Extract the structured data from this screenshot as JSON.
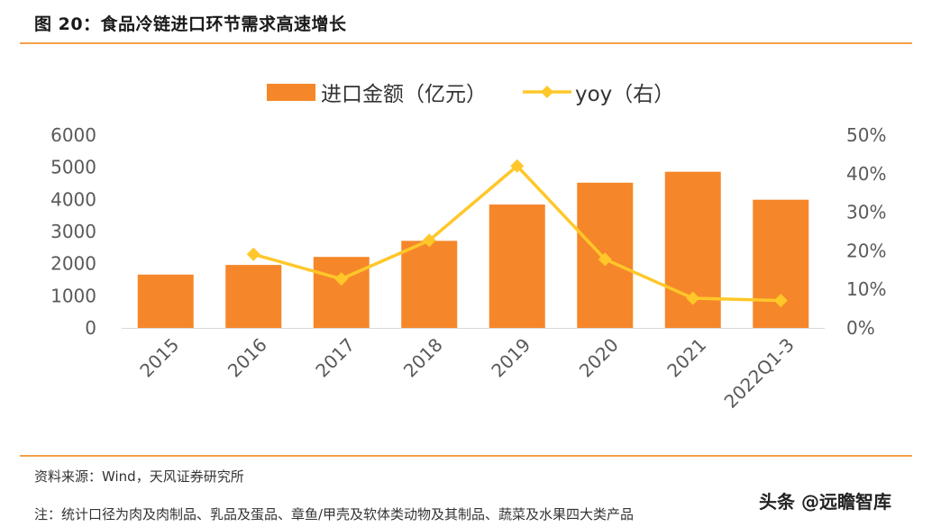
{
  "figure": {
    "title": "图 20：食品冷链进口环节需求高速增长",
    "source": "资料来源：Wind，天风证券研究所",
    "note": "注：统计口径为肉及肉制品、乳品及蛋品、章鱼/甲壳及软体类动物及其制品、蔬菜及水果四大类产品",
    "watermark": "头条 @远瞻智库"
  },
  "colors": {
    "bar": "#F5872A",
    "line": "#FFC729",
    "accent_rule": "#F5A04A"
  },
  "chart_data": {
    "type": "bar",
    "title": "",
    "categories": [
      "2015",
      "2016",
      "2017",
      "2018",
      "2019",
      "2020",
      "2021",
      "2022Q1-3"
    ],
    "series": [
      {
        "name": "进口金额（亿元）",
        "type": "bar",
        "axis": "left",
        "values": [
          1660,
          1960,
          2210,
          2710,
          3840,
          4520,
          4860,
          3990
        ]
      },
      {
        "name": "yoy（右）",
        "type": "line",
        "axis": "right",
        "marker": "diamond",
        "values": [
          null,
          19.1,
          12.7,
          22.7,
          42.0,
          17.8,
          7.7,
          7.1
        ]
      }
    ],
    "ylim_left": [
      0,
      6000
    ],
    "yticks_left": [
      "0",
      "1000",
      "2000",
      "3000",
      "4000",
      "5000",
      "6000"
    ],
    "ylim_right": [
      0,
      50
    ],
    "yticks_right": [
      "0%",
      "10%",
      "20%",
      "30%",
      "40%",
      "50%"
    ],
    "grid": false,
    "legend_position": "top-center",
    "xlabel": "",
    "ylabel": ""
  }
}
